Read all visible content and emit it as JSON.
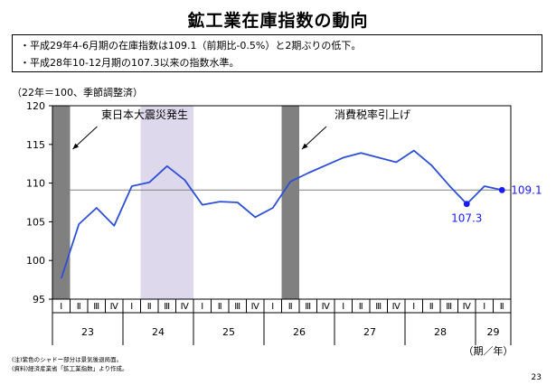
{
  "header": {
    "title": "鉱工業在庫指数の動向"
  },
  "notes": [
    "・平成29年4-6月期の在庫指数は109.1（前期比-0.5%）と2期ぶりの低下。",
    "・平成28年10-12月期の107.3以来の指数水準。"
  ],
  "unit_label": "（22年＝100、季節調整済）",
  "footnotes": [
    "(注)紫色のシャドー部分は景気後退局面。",
    "(資料)経済産業省「鉱工業指数」より作成。"
  ],
  "page_number": "23",
  "chart_data": {
    "type": "line",
    "quarter_labels": [
      "Ⅰ",
      "Ⅱ",
      "Ⅲ",
      "Ⅳ",
      "Ⅰ",
      "Ⅱ",
      "Ⅲ",
      "Ⅳ",
      "Ⅰ",
      "Ⅱ",
      "Ⅲ",
      "Ⅳ",
      "Ⅰ",
      "Ⅱ",
      "Ⅲ",
      "Ⅳ",
      "Ⅰ",
      "Ⅱ",
      "Ⅲ",
      "Ⅳ",
      "Ⅰ",
      "Ⅱ",
      "Ⅲ",
      "Ⅳ",
      "Ⅰ",
      "Ⅱ"
    ],
    "years": [
      {
        "label": "23",
        "start": 0,
        "end": 3
      },
      {
        "label": "24",
        "start": 4,
        "end": 7
      },
      {
        "label": "25",
        "start": 8,
        "end": 11
      },
      {
        "label": "26",
        "start": 12,
        "end": 15
      },
      {
        "label": "27",
        "start": 16,
        "end": 19
      },
      {
        "label": "28",
        "start": 20,
        "end": 23
      },
      {
        "label": "29",
        "start": 24,
        "end": 25
      }
    ],
    "x_axis_suffix": "（期／年）",
    "values": [
      97.7,
      104.7,
      106.8,
      104.5,
      109.6,
      110.1,
      112.2,
      110.4,
      107.2,
      107.6,
      107.5,
      105.6,
      106.8,
      110.2,
      111.3,
      112.3,
      113.3,
      113.9,
      113.3,
      112.7,
      114.2,
      112.3,
      109.7,
      107.3,
      109.6,
      109.1
    ],
    "ylim": [
      95,
      120
    ],
    "yticks": [
      95,
      100,
      105,
      110,
      115,
      120
    ],
    "reference_line": 109.1,
    "shading": [
      {
        "kind": "event",
        "start": 0,
        "end": 0
      },
      {
        "kind": "recession",
        "start": 5,
        "end": 7
      },
      {
        "kind": "event",
        "start": 13,
        "end": 13
      }
    ],
    "annotations": [
      {
        "text": "東日本大震災発生",
        "qi": 0
      },
      {
        "text": "消費税率引上げ",
        "qi": 13
      }
    ],
    "point_labels": [
      {
        "qi": 23,
        "text": "107.3"
      },
      {
        "qi": 25,
        "text": "109.1"
      }
    ],
    "colors": {
      "line": "#2d4fd6",
      "highlight": "#1a1aff",
      "event_shade": "#808080",
      "recession_shade": "#ddd8ec",
      "reference": "#808080"
    }
  }
}
